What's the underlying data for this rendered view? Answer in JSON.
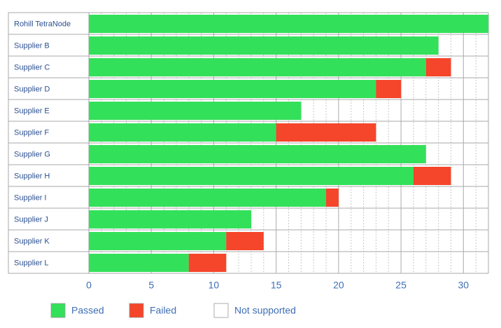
{
  "chart_data": {
    "type": "bar",
    "orientation": "horizontal",
    "stacked": true,
    "categories": [
      "Rohill TetraNode",
      "Supplier B",
      "Supplier C",
      "Supplier D",
      "Supplier E",
      "Supplier F",
      "Supplier G",
      "Supplier H",
      "Supplier I",
      "Supplier J",
      "Supplier K",
      "Supplier L"
    ],
    "series": [
      {
        "name": "Passed",
        "color": "#33e05a",
        "values": [
          32,
          28,
          27,
          23,
          17,
          15,
          27,
          26,
          19,
          13,
          11,
          8
        ]
      },
      {
        "name": "Failed",
        "color": "#f5452a",
        "values": [
          0,
          0,
          2,
          2,
          0,
          8,
          0,
          3,
          1,
          0,
          3,
          3
        ]
      },
      {
        "name": "Not supported",
        "color": "#ffffff",
        "values": [
          0,
          4,
          3,
          7,
          15,
          9,
          5,
          3,
          12,
          19,
          18,
          21
        ]
      }
    ],
    "xlim": [
      0,
      32
    ],
    "xticks": [
      0,
      5,
      10,
      15,
      20,
      25,
      30
    ],
    "grid": true,
    "legend": "bottom"
  }
}
